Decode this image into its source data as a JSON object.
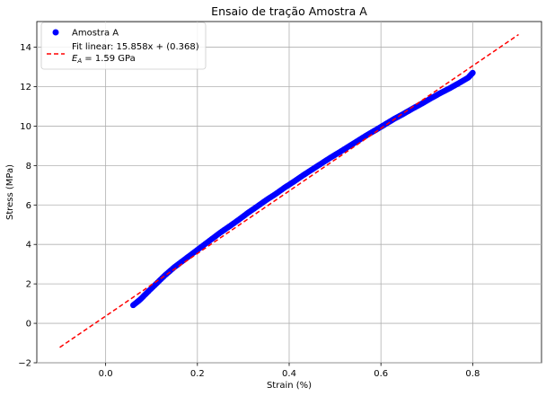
{
  "chart_data": {
    "type": "scatter",
    "title": "Ensaio de tração Amostra A",
    "xlabel": "Strain (%)",
    "ylabel": "Stress (MPa)",
    "xlim": [
      -0.15,
      0.95
    ],
    "ylim": [
      -2.0,
      15.3
    ],
    "x_ticks": [
      0.0,
      0.2,
      0.4,
      0.6,
      0.8
    ],
    "x_tick_labels": [
      "0.0",
      "0.2",
      "0.4",
      "0.6",
      "0.8"
    ],
    "y_ticks": [
      -2,
      0,
      2,
      4,
      6,
      8,
      10,
      12,
      14
    ],
    "y_tick_labels": [
      "−2",
      "0",
      "2",
      "4",
      "6",
      "8",
      "10",
      "12",
      "14"
    ],
    "grid": true,
    "legend_position": "top-left",
    "series": [
      {
        "name": "Amostra A",
        "kind": "scatter",
        "color": "#0000ff",
        "x": [
          0.06,
          0.075,
          0.09,
          0.11,
          0.13,
          0.15,
          0.17,
          0.19,
          0.21,
          0.23,
          0.25,
          0.27,
          0.29,
          0.31,
          0.33,
          0.35,
          0.37,
          0.39,
          0.41,
          0.43,
          0.45,
          0.47,
          0.49,
          0.51,
          0.53,
          0.55,
          0.57,
          0.59,
          0.61,
          0.63,
          0.65,
          0.67,
          0.69,
          0.71,
          0.73,
          0.75,
          0.77,
          0.79,
          0.8
        ],
        "y": [
          0.92,
          1.2,
          1.55,
          2.0,
          2.45,
          2.85,
          3.2,
          3.55,
          3.9,
          4.25,
          4.6,
          4.92,
          5.25,
          5.6,
          5.92,
          6.25,
          6.55,
          6.88,
          7.18,
          7.5,
          7.8,
          8.1,
          8.4,
          8.68,
          8.97,
          9.26,
          9.55,
          9.82,
          10.1,
          10.38,
          10.63,
          10.9,
          11.15,
          11.42,
          11.68,
          11.92,
          12.18,
          12.45,
          12.7
        ]
      },
      {
        "name": "Fit linear: 15.858x + (0.368)",
        "name_line2_parts": [
          "E",
          "A",
          " = 1.59 GPa"
        ],
        "kind": "line",
        "style": "dashed",
        "color": "#ff0000",
        "slope": 15.858,
        "intercept": 0.368,
        "x_range": [
          -0.1,
          0.9
        ]
      }
    ]
  }
}
